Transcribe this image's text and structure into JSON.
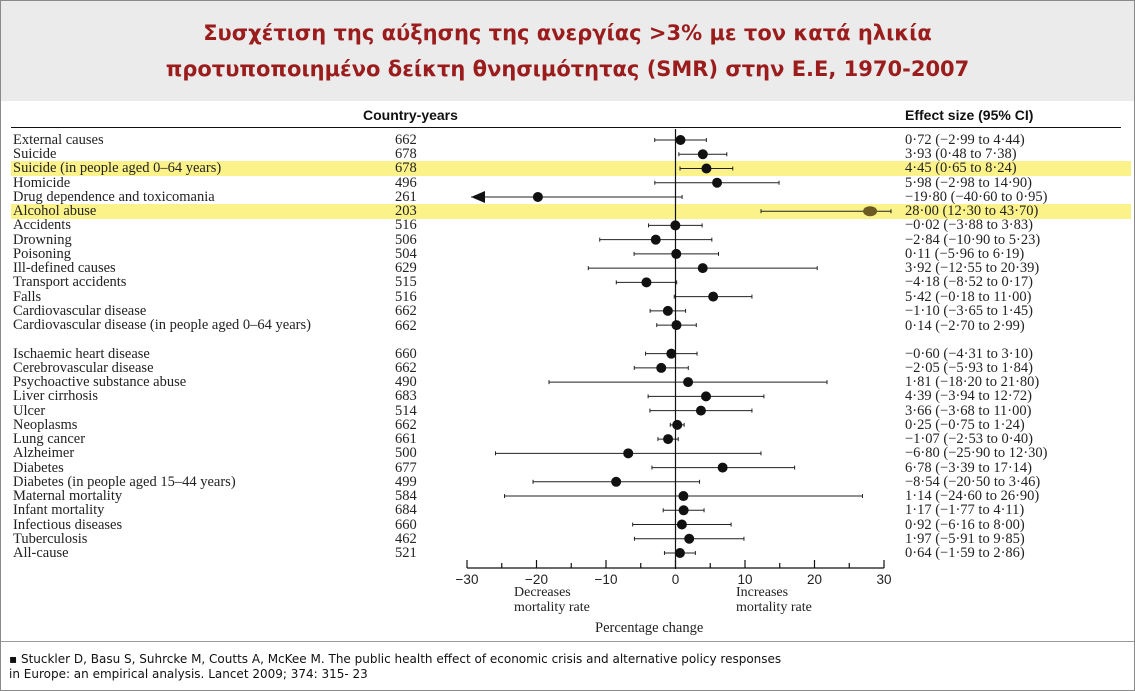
{
  "title": {
    "line1": "Συσχέτιση της αύξησης της ανεργίας >3% με τον κατά ηλικία",
    "line2": "προτυποποιημένο δείκτη θνησιμότητας (SMR) στην  Ε.Ε, 1970-2007"
  },
  "colors": {
    "title": "#9b1c1c",
    "highlight": "#fbf38a",
    "band": "#ebebeb",
    "ink": "#222222"
  },
  "chart_data": {
    "type": "forest",
    "columns": {
      "n": "Country-years",
      "effect": "Effect size (95% CI)"
    },
    "xlim": [
      -30,
      30
    ],
    "xticks": [
      -30,
      -20,
      -10,
      0,
      10,
      20,
      30
    ],
    "xlabel": "Percentage change",
    "left_note": [
      "Decreases",
      "mortality rate"
    ],
    "right_note": [
      "Increases",
      "mortality rate"
    ],
    "rows": [
      {
        "label": "External causes",
        "n": "662",
        "est": 0.72,
        "lo": -2.99,
        "hi": 4.44,
        "ci": "0·72 (−2·99 to 4·44)",
        "highlight": false
      },
      {
        "label": "Suicide",
        "n": "678",
        "est": 3.93,
        "lo": 0.48,
        "hi": 7.38,
        "ci": "3·93 (0·48 to 7·38)",
        "highlight": false
      },
      {
        "label": "Suicide (in people aged 0–64 years)",
        "n": "678",
        "est": 4.45,
        "lo": 0.65,
        "hi": 8.24,
        "ci": "4·45 (0·65 to 8·24)",
        "highlight": true
      },
      {
        "label": "Homicide",
        "n": "496",
        "est": 5.98,
        "lo": -2.98,
        "hi": 14.9,
        "ci": "5·98 (−2·98 to 14·90)",
        "highlight": false
      },
      {
        "label": "Drug dependence and toxicomania",
        "n": "261",
        "est": -19.8,
        "lo": -40.6,
        "hi": 0.95,
        "ci": "−19·80 (−40·60 to 0·95)",
        "highlight": false
      },
      {
        "label": "Alcohol abuse",
        "n": "203",
        "est": 28.0,
        "lo": 12.3,
        "hi": 43.7,
        "ci": "28·00 (12·30 to 43·70)",
        "highlight": true
      },
      {
        "label": "Accidents",
        "n": "516",
        "est": -0.02,
        "lo": -3.88,
        "hi": 3.83,
        "ci": "−0·02 (−3·88 to 3·83)",
        "highlight": false
      },
      {
        "label": "Drowning",
        "n": "506",
        "est": -2.84,
        "lo": -10.9,
        "hi": 5.23,
        "ci": "−2·84 (−10·90 to 5·23)",
        "highlight": false
      },
      {
        "label": "Poisoning",
        "n": "504",
        "est": 0.11,
        "lo": -5.96,
        "hi": 6.19,
        "ci": "0·11 (−5·96 to 6·19)",
        "highlight": false
      },
      {
        "label": "Ill-defined causes",
        "n": "629",
        "est": 3.92,
        "lo": -12.55,
        "hi": 20.39,
        "ci": "3·92 (−12·55 to 20·39)",
        "highlight": false
      },
      {
        "label": "Transport accidents",
        "n": "515",
        "est": -4.18,
        "lo": -8.52,
        "hi": 0.17,
        "ci": "−4·18 (−8·52 to 0·17)",
        "highlight": false
      },
      {
        "label": "Falls",
        "n": "516",
        "est": 5.42,
        "lo": -0.18,
        "hi": 11.0,
        "ci": "5·42 (−0·18 to 11·00)",
        "highlight": false
      },
      {
        "label": "Cardiovascular disease",
        "n": "662",
        "est": -1.1,
        "lo": -3.65,
        "hi": 1.45,
        "ci": "−1·10 (−3·65 to 1·45)",
        "highlight": false
      },
      {
        "label": "Cardiovascular disease (in people aged 0–64 years)",
        "n": "662",
        "est": 0.14,
        "lo": -2.7,
        "hi": 2.99,
        "ci": "0·14 (−2·70 to 2·99)",
        "highlight": false
      },
      {
        "label": "Ischaemic heart disease",
        "n": "660",
        "est": -0.6,
        "lo": -4.31,
        "hi": 3.1,
        "ci": "−0·60 (−4·31 to 3·10)",
        "highlight": false
      },
      {
        "label": "Cerebrovascular disease",
        "n": "662",
        "est": -2.05,
        "lo": -5.93,
        "hi": 1.84,
        "ci": "−2·05 (−5·93 to 1·84)",
        "highlight": false
      },
      {
        "label": "Psychoactive substance abuse",
        "n": "490",
        "est": 1.81,
        "lo": -18.2,
        "hi": 21.8,
        "ci": "1·81 (−18·20 to 21·80)",
        "highlight": false
      },
      {
        "label": "Liver cirrhosis",
        "n": "683",
        "est": 4.39,
        "lo": -3.94,
        "hi": 12.72,
        "ci": "4·39 (−3·94 to 12·72)",
        "highlight": false
      },
      {
        "label": "Ulcer",
        "n": "514",
        "est": 3.66,
        "lo": -3.68,
        "hi": 11.0,
        "ci": "3·66 (−3·68 to 11·00)",
        "highlight": false
      },
      {
        "label": "Neoplasms",
        "n": "662",
        "est": 0.25,
        "lo": -0.75,
        "hi": 1.24,
        "ci": "0·25 (−0·75 to 1·24)",
        "highlight": false
      },
      {
        "label": "Lung cancer",
        "n": "661",
        "est": -1.07,
        "lo": -2.53,
        "hi": 0.4,
        "ci": "−1·07 (−2·53 to 0·40)",
        "highlight": false
      },
      {
        "label": "Alzheimer",
        "n": "500",
        "est": -6.8,
        "lo": -25.9,
        "hi": 12.3,
        "ci": "−6·80 (−25·90 to 12·30)",
        "highlight": false
      },
      {
        "label": "Diabetes",
        "n": "677",
        "est": 6.78,
        "lo": -3.39,
        "hi": 17.14,
        "ci": "6·78 (−3·39 to 17·14)",
        "highlight": false
      },
      {
        "label": "Diabetes (in people aged 15–44 years)",
        "n": "499",
        "est": -8.54,
        "lo": -20.5,
        "hi": 3.46,
        "ci": "−8·54 (−20·50 to 3·46)",
        "highlight": false
      },
      {
        "label": "Maternal mortality",
        "n": "584",
        "est": 1.14,
        "lo": -24.6,
        "hi": 26.9,
        "ci": "1·14 (−24·60 to 26·90)",
        "highlight": false
      },
      {
        "label": "Infant mortality",
        "n": "684",
        "est": 1.17,
        "lo": -1.77,
        "hi": 4.11,
        "ci": "1·17 (−1·77 to 4·11)",
        "highlight": false
      },
      {
        "label": "Infectious diseases",
        "n": "660",
        "est": 0.92,
        "lo": -6.16,
        "hi": 8.0,
        "ci": "0·92 (−6·16 to 8·00)",
        "highlight": false
      },
      {
        "label": "Tuberculosis",
        "n": "462",
        "est": 1.97,
        "lo": -5.91,
        "hi": 9.85,
        "ci": "1·97 (−5·91 to 9·85)",
        "highlight": false
      },
      {
        "label": "All-cause",
        "n": "521",
        "est": 0.64,
        "lo": -1.59,
        "hi": 2.86,
        "ci": "0·64 (−1·59 to 2·86)",
        "highlight": false
      }
    ]
  },
  "footnote": {
    "line1": "▪ Stuckler D, Basu S, Suhrcke M, Coutts A, McKee M. The public health effect  of economic crisis and alternative policy responses",
    "line2": "in Europe: an empirical analysis. Lancet 2009; 374: 315- 23"
  }
}
